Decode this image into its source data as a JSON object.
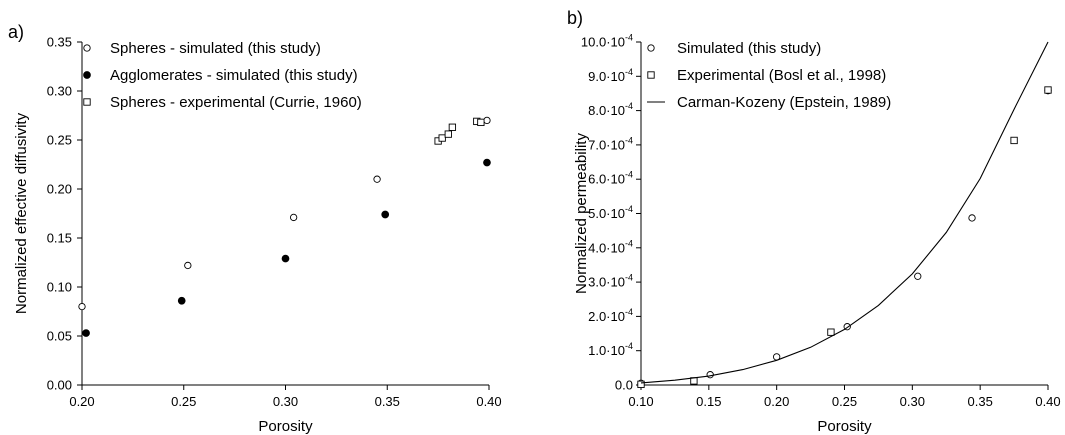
{
  "chart_data": [
    {
      "panel_label": "a)",
      "type": "scatter",
      "xlabel": "Porosity",
      "ylabel": "Normalized effective diffusivity",
      "xlim": [
        0.2,
        0.4
      ],
      "ylim": [
        0,
        0.35
      ],
      "x_ticks": [
        "0.20",
        "0.25",
        "0.30",
        "0.35",
        "0.40"
      ],
      "y_ticks": [
        "0.00",
        "0.05",
        "0.10",
        "0.15",
        "0.20",
        "0.25",
        "0.30",
        "0.35"
      ],
      "legend_position": "top-left",
      "series": [
        {
          "name": "Spheres - simulated (this study)",
          "marker": "open-circle",
          "x": [
            0.2,
            0.252,
            0.304,
            0.345,
            0.399
          ],
          "y": [
            0.08,
            0.122,
            0.171,
            0.21,
            0.27
          ]
        },
        {
          "name": "Agglomerates - simulated (this study)",
          "marker": "filled-circle",
          "x": [
            0.202,
            0.249,
            0.3,
            0.349,
            0.399
          ],
          "y": [
            0.053,
            0.086,
            0.129,
            0.174,
            0.227
          ]
        },
        {
          "name": "Spheres - experimental (Currie, 1960)",
          "marker": "open-square",
          "x": [
            0.375,
            0.377,
            0.38,
            0.382,
            0.394,
            0.396
          ],
          "y": [
            0.249,
            0.252,
            0.256,
            0.263,
            0.269,
            0.268
          ]
        }
      ]
    },
    {
      "panel_label": "b)",
      "type": "scatter",
      "xlabel": "Porosity",
      "ylabel": "Normalized permeability",
      "xlim": [
        0.1,
        0.4
      ],
      "ylim": [
        0,
        0.001
      ],
      "x_ticks": [
        "0.10",
        "0.15",
        "0.20",
        "0.25",
        "0.30",
        "0.35",
        "0.40"
      ],
      "y_ticks": [
        {
          "mantissa": "0.0",
          "exponent": ""
        },
        {
          "mantissa": "1.0·10",
          "exponent": "-4"
        },
        {
          "mantissa": "2.0·10",
          "exponent": "-4"
        },
        {
          "mantissa": "3.0·10",
          "exponent": "-4"
        },
        {
          "mantissa": "4.0·10",
          "exponent": "-4"
        },
        {
          "mantissa": "5.0·10",
          "exponent": "-4"
        },
        {
          "mantissa": "6.0·10",
          "exponent": "-4"
        },
        {
          "mantissa": "7.0·10",
          "exponent": "-4"
        },
        {
          "mantissa": "8.0·10",
          "exponent": "-4"
        },
        {
          "mantissa": "9.0·10",
          "exponent": "-4"
        },
        {
          "mantissa": "10.0·10",
          "exponent": "-4"
        }
      ],
      "legend_position": "top-left",
      "series": [
        {
          "name": "Simulated (this study)",
          "marker": "open-circle",
          "x": [
            0.1,
            0.151,
            0.2,
            0.252,
            0.304,
            0.344,
            0.4
          ],
          "y": [
            5e-06,
            3e-05,
            8.2e-05,
            0.00017,
            0.000317,
            0.000487,
            0.000858
          ]
        },
        {
          "name": "Experimental (Bosl et al., 1998)",
          "marker": "open-square",
          "x": [
            0.1,
            0.139,
            0.24,
            0.375,
            0.4
          ],
          "y": [
            2e-06,
            1.2e-05,
            0.000154,
            0.000713,
            0.00086
          ]
        },
        {
          "name": "Carman-Kozeny (Epstein, 1989)",
          "marker": "line",
          "x": [
            0.1,
            0.125,
            0.15,
            0.175,
            0.2,
            0.225,
            0.25,
            0.275,
            0.3,
            0.325,
            0.35,
            0.375,
            0.4
          ],
          "y": [
            6e-06,
            1.4e-05,
            2.6e-05,
            4.5e-05,
            7.2e-05,
            0.00011,
            0.000162,
            0.000232,
            0.000324,
            0.000445,
            0.000602,
            0.000804,
            0.001
          ]
        }
      ]
    }
  ]
}
